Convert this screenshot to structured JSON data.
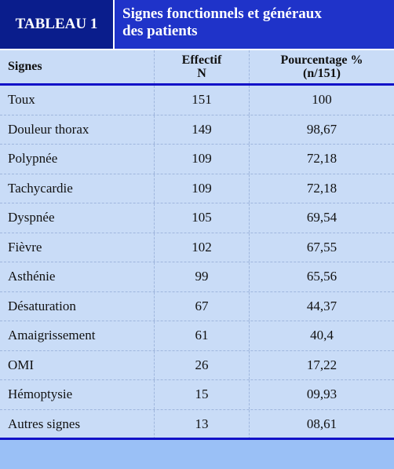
{
  "header": {
    "tab_label": "TABLEAU 1",
    "title_line1": "Signes fonctionnels et généraux",
    "title_line2": "des patients"
  },
  "table": {
    "columns": [
      {
        "line1": "Signes",
        "line2": ""
      },
      {
        "line1": "Effectif",
        "line2": "N"
      },
      {
        "line1": "Pourcentage %",
        "line2": "(n/151)"
      }
    ],
    "rows": [
      {
        "signe": "Toux",
        "effectif": "151",
        "pourcentage": "100"
      },
      {
        "signe": "Douleur thorax",
        "effectif": "149",
        "pourcentage": "98,67"
      },
      {
        "signe": "Polypnée",
        "effectif": "109",
        "pourcentage": "72,18"
      },
      {
        "signe": "Tachycardie",
        "effectif": "109",
        "pourcentage": "72,18"
      },
      {
        "signe": "Dyspnée",
        "effectif": "105",
        "pourcentage": "69,54"
      },
      {
        "signe": "Fièvre",
        "effectif": "102",
        "pourcentage": "67,55"
      },
      {
        "signe": "Asthénie",
        "effectif": "99",
        "pourcentage": "65,56"
      },
      {
        "signe": "Désaturation",
        "effectif": "67",
        "pourcentage": "44,37"
      },
      {
        "signe": "Amaigrissement",
        "effectif": "61",
        "pourcentage": "40,4"
      },
      {
        "signe": "OMI",
        "effectif": "26",
        "pourcentage": "17,22"
      },
      {
        "signe": "Hémoptysie",
        "effectif": "15",
        "pourcentage": "09,93"
      },
      {
        "signe": "Autres signes",
        "effectif": "13",
        "pourcentage": "08,61"
      }
    ]
  },
  "colors": {
    "tab_bg": "#0a1d8c",
    "title_bg": "#1f33c9",
    "table_bg": "#c9dcf7",
    "rule": "#1212c8",
    "footer_bg": "#9ac0f6"
  }
}
